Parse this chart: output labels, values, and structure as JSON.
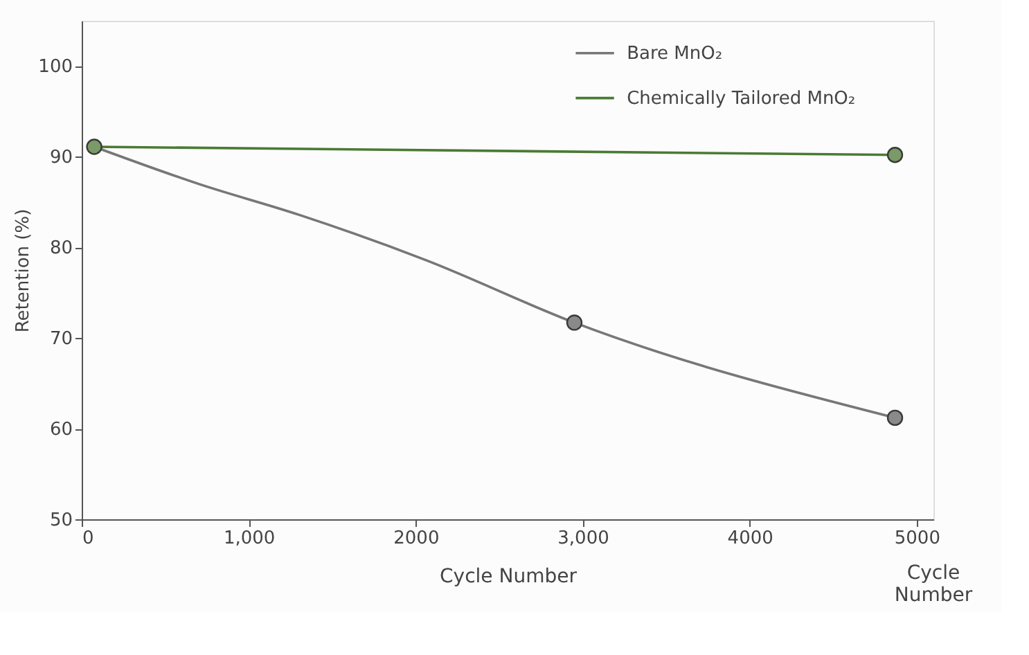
{
  "chart_data": {
    "type": "line",
    "xlabel": "Cycle Number",
    "ylabel": "Retention (%)",
    "annotations": [
      "Cycle Number"
    ],
    "xlim": [
      0,
      5100
    ],
    "xticks": [
      0,
      {
        "value": 1000,
        "label": "1,000"
      },
      2000,
      {
        "value": 3000,
        "label": "3,000"
      },
      4000,
      5000
    ],
    "ylim": [
      50,
      105
    ],
    "yticks": [
      50,
      60,
      70,
      80,
      90,
      100
    ],
    "grid": false,
    "legend": "top right",
    "line_style": "solid",
    "marker": "none",
    "series": [
      {
        "name": "Bare MnO₂",
        "color": "#777777",
        "x": [
          75,
          700,
          1300,
          2060,
          2950,
          4870
        ],
        "values": [
          91.1,
          87.0,
          83.6,
          78.6,
          71.7,
          61.2
        ]
      },
      {
        "name": "Chemically Tailored MnO₂",
        "color": "#4a7a34",
        "x": [
          75,
          4870
        ],
        "values": [
          91.1,
          90.2
        ]
      },
      {
        "type": "scatter",
        "marker": "circle",
        "color": "#8a8a8a",
        "x": [
          2950,
          4870
        ],
        "values": [
          71.7,
          61.2
        ]
      },
      {
        "type": "scatter",
        "marker": "circle",
        "color": "#7a9a68",
        "x": [
          75,
          4870
        ],
        "values": [
          91.1,
          90.2
        ]
      }
    ]
  }
}
